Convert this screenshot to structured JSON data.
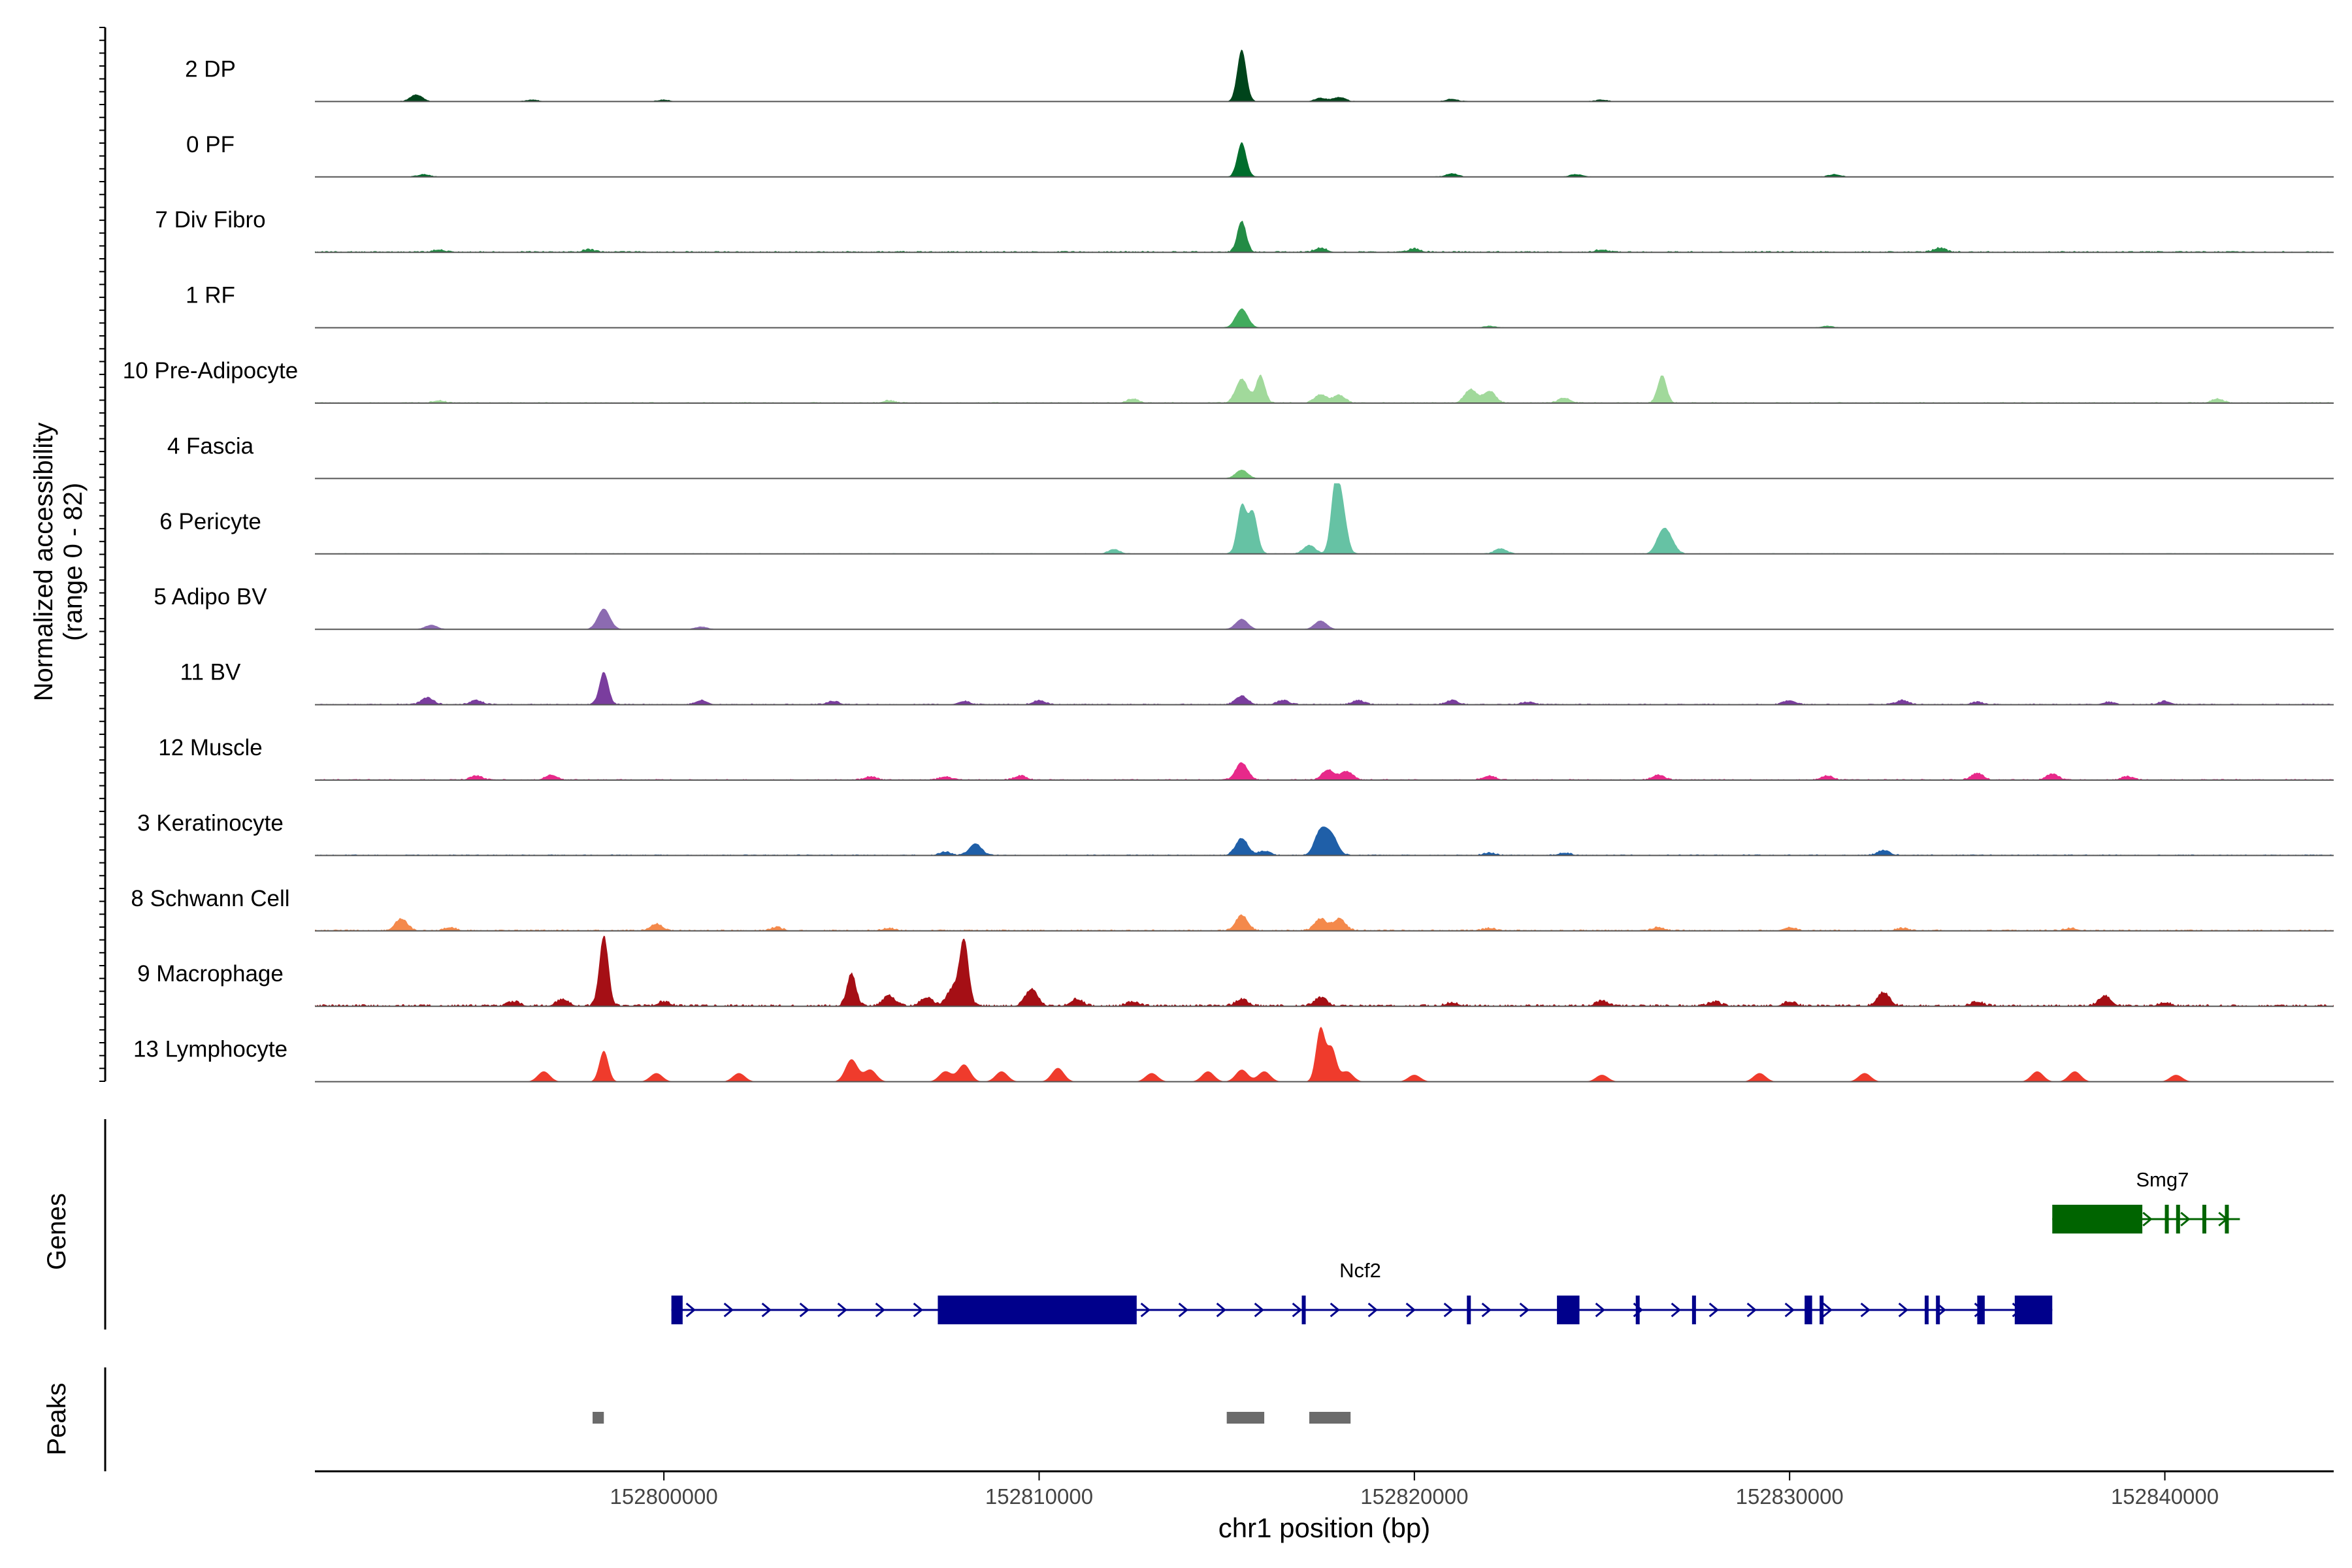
{
  "chart_data": {
    "type": "genome-browser-track",
    "title": "",
    "ylabel": "Normalized accessibility",
    "ylabel_range": "(range 0 - 82)",
    "xlabel": "chr1 position (bp)",
    "xlim": [
      152790700,
      152844500
    ],
    "ylim": [
      0,
      82
    ],
    "x_ticks": [
      152800000,
      152810000,
      152820000,
      152830000,
      152840000
    ],
    "x_tick_labels": [
      "152800000",
      "152810000",
      "152820000",
      "152830000",
      "152840000"
    ],
    "series": [
      {
        "name": "2 DP",
        "color": "#00441b",
        "baseline": 0.4,
        "peaks": [
          [
            152793400,
            8
          ],
          [
            152796500,
            2
          ],
          [
            152800000,
            2
          ],
          [
            152815400,
            60
          ],
          [
            152817500,
            4
          ],
          [
            152818000,
            5
          ],
          [
            152821000,
            3
          ],
          [
            152825000,
            2
          ]
        ]
      },
      {
        "name": "0 PF",
        "color": "#006d2c",
        "baseline": 0.4,
        "peaks": [
          [
            152793600,
            3
          ],
          [
            152815400,
            40
          ],
          [
            152821000,
            4
          ],
          [
            152824300,
            3
          ],
          [
            152831200,
            3
          ]
        ]
      },
      {
        "name": "7 Div Fibro",
        "color": "#238b45",
        "baseline": 1.0,
        "peaks": [
          [
            152794000,
            3
          ],
          [
            152798000,
            3
          ],
          [
            152815400,
            36
          ],
          [
            152817500,
            5
          ],
          [
            152820000,
            4
          ],
          [
            152825000,
            3
          ],
          [
            152834000,
            5
          ]
        ]
      },
      {
        "name": "1 RF",
        "color": "#41ab5d",
        "baseline": 0.3,
        "peaks": [
          [
            152815400,
            22
          ],
          [
            152822000,
            2
          ],
          [
            152831000,
            2
          ]
        ]
      },
      {
        "name": "10 Pre-Adipocyte",
        "color": "#a1d99b",
        "baseline": 0.8,
        "peaks": [
          [
            152794000,
            3
          ],
          [
            152806000,
            3
          ],
          [
            152812500,
            5
          ],
          [
            152815400,
            28
          ],
          [
            152815900,
            32
          ],
          [
            152817500,
            10
          ],
          [
            152818000,
            9
          ],
          [
            152821500,
            16
          ],
          [
            152822000,
            14
          ],
          [
            152824000,
            6
          ],
          [
            152826600,
            32
          ],
          [
            152841400,
            5
          ]
        ]
      },
      {
        "name": "4 Fascia",
        "color": "#74c476",
        "baseline": 0.3,
        "peaks": [
          [
            152815400,
            10
          ]
        ]
      },
      {
        "name": "6 Pericyte",
        "color": "#66c2a4",
        "baseline": 0.5,
        "peaks": [
          [
            152815400,
            56
          ],
          [
            152815700,
            48
          ],
          [
            152817200,
            10
          ],
          [
            152817900,
            82
          ],
          [
            152818100,
            42
          ],
          [
            152812000,
            5
          ],
          [
            152822300,
            6
          ],
          [
            152826600,
            22
          ],
          [
            152826800,
            14
          ]
        ]
      },
      {
        "name": "5 Adipo BV",
        "color": "#8c6bb1",
        "baseline": 0.2,
        "peaks": [
          [
            152793800,
            5
          ],
          [
            152798400,
            24
          ],
          [
            152815400,
            12
          ],
          [
            152817500,
            10
          ],
          [
            152801000,
            3
          ]
        ]
      },
      {
        "name": "11 BV",
        "color": "#7a3d9e",
        "baseline": 0.8,
        "peaks": [
          [
            152793700,
            8
          ],
          [
            152795000,
            5
          ],
          [
            152798400,
            38
          ],
          [
            152801000,
            5
          ],
          [
            152804500,
            4
          ],
          [
            152808000,
            4
          ],
          [
            152810000,
            5
          ],
          [
            152815400,
            10
          ],
          [
            152816500,
            5
          ],
          [
            152818500,
            5
          ],
          [
            152821000,
            5
          ],
          [
            152823000,
            3
          ],
          [
            152830000,
            5
          ],
          [
            152833000,
            5
          ],
          [
            152835000,
            3
          ],
          [
            152838500,
            3
          ],
          [
            152840000,
            4
          ]
        ]
      },
      {
        "name": "12 Muscle",
        "color": "#e7298a",
        "baseline": 0.8,
        "peaks": [
          [
            152795000,
            5
          ],
          [
            152797000,
            6
          ],
          [
            152805500,
            4
          ],
          [
            152807500,
            4
          ],
          [
            152809500,
            5
          ],
          [
            152815400,
            20
          ],
          [
            152817700,
            12
          ],
          [
            152818200,
            10
          ],
          [
            152822000,
            5
          ],
          [
            152826500,
            6
          ],
          [
            152831000,
            5
          ],
          [
            152835000,
            8
          ],
          [
            152837000,
            7
          ],
          [
            152839000,
            4
          ]
        ]
      },
      {
        "name": "3 Keratinocyte",
        "color": "#1f5fa8",
        "baseline": 0.8,
        "peaks": [
          [
            152807500,
            4
          ],
          [
            152808300,
            14
          ],
          [
            152815400,
            20
          ],
          [
            152816000,
            5
          ],
          [
            152817500,
            28
          ],
          [
            152817800,
            22
          ],
          [
            152822000,
            3
          ],
          [
            152824000,
            3
          ],
          [
            152832500,
            6
          ]
        ]
      },
      {
        "name": "8 Schwann Cell",
        "color": "#f4894b",
        "baseline": 1.0,
        "peaks": [
          [
            152793000,
            14
          ],
          [
            152794300,
            4
          ],
          [
            152799800,
            8
          ],
          [
            152803000,
            4
          ],
          [
            152806000,
            3
          ],
          [
            152815400,
            18
          ],
          [
            152817500,
            14
          ],
          [
            152818000,
            14
          ],
          [
            152822000,
            3
          ],
          [
            152826500,
            4
          ],
          [
            152830000,
            4
          ],
          [
            152833000,
            3
          ],
          [
            152837500,
            3
          ]
        ]
      },
      {
        "name": "9 Macrophage",
        "color": "#a50f15",
        "baseline": 1.5,
        "peaks": [
          [
            152796000,
            5
          ],
          [
            152797300,
            8
          ],
          [
            152798400,
            82
          ],
          [
            152800000,
            5
          ],
          [
            152805000,
            38
          ],
          [
            152806000,
            12
          ],
          [
            152807000,
            10
          ],
          [
            152807700,
            20
          ],
          [
            152808000,
            75
          ],
          [
            152809800,
            20
          ],
          [
            152811000,
            8
          ],
          [
            152812500,
            5
          ],
          [
            152815400,
            8
          ],
          [
            152817500,
            10
          ],
          [
            152821000,
            4
          ],
          [
            152825000,
            6
          ],
          [
            152828000,
            5
          ],
          [
            152830000,
            5
          ],
          [
            152832500,
            16
          ],
          [
            152835000,
            5
          ],
          [
            152838400,
            12
          ],
          [
            152840000,
            4
          ]
        ]
      },
      {
        "name": "13 Lymphocyte",
        "color": "#ef3b2c",
        "baseline": 0,
        "peaks": [
          [
            152796800,
            12
          ],
          [
            152798400,
            36
          ],
          [
            152799800,
            10
          ],
          [
            152802000,
            10
          ],
          [
            152805000,
            26
          ],
          [
            152805500,
            14
          ],
          [
            152807500,
            12
          ],
          [
            152808000,
            20
          ],
          [
            152809000,
            12
          ],
          [
            152810500,
            16
          ],
          [
            152813000,
            10
          ],
          [
            152814500,
            12
          ],
          [
            152815400,
            14
          ],
          [
            152816000,
            12
          ],
          [
            152817500,
            62
          ],
          [
            152817800,
            38
          ],
          [
            152818200,
            12
          ],
          [
            152820000,
            8
          ],
          [
            152825000,
            8
          ],
          [
            152829200,
            10
          ],
          [
            152832000,
            10
          ],
          [
            152836600,
            12
          ],
          [
            152837600,
            12
          ],
          [
            152840300,
            8
          ]
        ]
      }
    ],
    "genes_label": "Genes",
    "genes": [
      {
        "name": "Smg7",
        "color": "#006400",
        "start": 152837000,
        "end": 152842000,
        "strand": "+",
        "exons": [
          [
            152837000,
            152839400
          ],
          [
            152840000,
            152840100
          ],
          [
            152840300,
            152840400
          ],
          [
            152841000,
            152841100
          ],
          [
            152841600,
            152841700
          ]
        ]
      },
      {
        "name": "Ncf2",
        "color": "#00008b",
        "start": 152800200,
        "end": 152837000,
        "strand": "+",
        "exons": [
          [
            152800200,
            152800500
          ],
          [
            152807300,
            152812600
          ],
          [
            152817000,
            152817100
          ],
          [
            152821400,
            152821500
          ],
          [
            152823800,
            152824400
          ],
          [
            152825900,
            152826000
          ],
          [
            152827400,
            152827500
          ],
          [
            152830400,
            152830600
          ],
          [
            152830800,
            152830900
          ],
          [
            152833600,
            152833700
          ],
          [
            152833900,
            152834000
          ],
          [
            152835000,
            152835200
          ],
          [
            152836000,
            152837000
          ]
        ]
      }
    ],
    "peaks_label": "Peaks",
    "peaks_color": "#6b6b6b",
    "peak_regions": [
      [
        152798100,
        152798400
      ],
      [
        152815000,
        152816000
      ],
      [
        152817200,
        152818300
      ]
    ]
  }
}
